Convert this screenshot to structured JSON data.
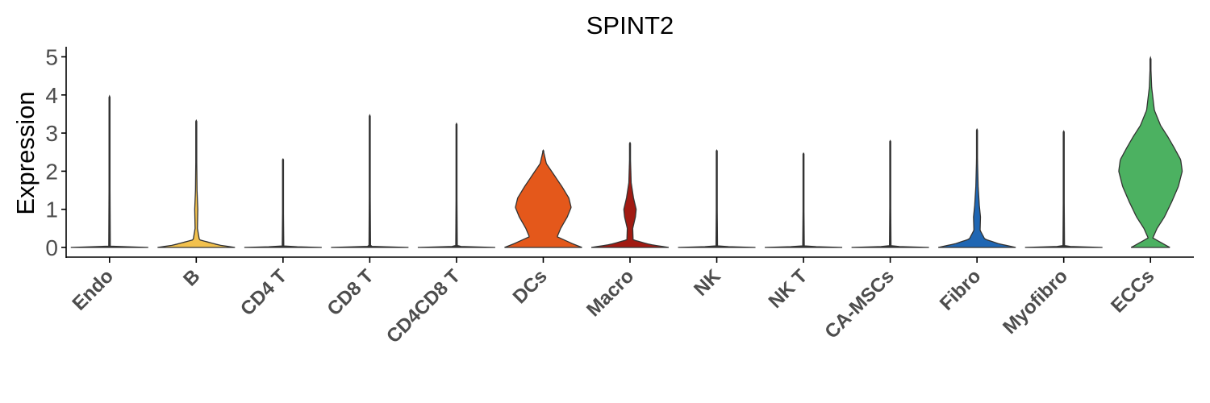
{
  "chart_data": {
    "type": "violin",
    "title": "SPINT2",
    "ylabel": "Expression",
    "xlabel": "",
    "ylim": [
      0,
      5
    ],
    "yticks": [
      "0",
      "1",
      "2",
      "3",
      "4",
      "5"
    ],
    "grid": false,
    "legend": "none",
    "categories": [
      "Endo",
      "B",
      "CD4 T",
      "CD8 T",
      "CD4CD8 T",
      "DCs",
      "Macro",
      "NK",
      "NK T",
      "CA-MSCs",
      "Fibro",
      "Myofibro",
      "ECCs"
    ],
    "colors": [
      "#333333",
      "#f2c14e",
      "#333333",
      "#333333",
      "#333333",
      "#e4581b",
      "#a11a12",
      "#333333",
      "#333333",
      "#333333",
      "#1f66b3",
      "#333333",
      "#4cb161"
    ],
    "max_values": [
      3.97,
      3.33,
      2.32,
      3.47,
      3.25,
      2.55,
      2.75,
      2.55,
      2.47,
      2.8,
      3.1,
      3.05,
      4.98
    ],
    "density_profiles": [
      [
        [
          0,
          1.0
        ],
        [
          0.03,
          0.02
        ],
        [
          3.97,
          0.0
        ]
      ],
      [
        [
          0,
          1.0
        ],
        [
          0.06,
          0.6
        ],
        [
          0.2,
          0.08
        ],
        [
          0.5,
          0.03
        ],
        [
          1.0,
          0.04
        ],
        [
          1.5,
          0.02
        ],
        [
          2.0,
          0.015
        ],
        [
          3.33,
          0.0
        ]
      ],
      [
        [
          0,
          1.0
        ],
        [
          0.03,
          0.02
        ],
        [
          2.32,
          0.0
        ]
      ],
      [
        [
          0,
          1.0
        ],
        [
          0.03,
          0.02
        ],
        [
          3.47,
          0.0
        ]
      ],
      [
        [
          0,
          1.0
        ],
        [
          0.03,
          0.02
        ],
        [
          3.25,
          0.0
        ]
      ],
      [
        [
          0,
          1.0
        ],
        [
          0.1,
          0.75
        ],
        [
          0.28,
          0.36
        ],
        [
          0.5,
          0.45
        ],
        [
          0.8,
          0.62
        ],
        [
          1.05,
          0.72
        ],
        [
          1.3,
          0.66
        ],
        [
          1.6,
          0.48
        ],
        [
          1.9,
          0.28
        ],
        [
          2.2,
          0.08
        ],
        [
          2.55,
          0.0
        ]
      ],
      [
        [
          0,
          1.0
        ],
        [
          0.08,
          0.5
        ],
        [
          0.2,
          0.08
        ],
        [
          0.5,
          0.07
        ],
        [
          0.8,
          0.14
        ],
        [
          1.0,
          0.16
        ],
        [
          1.3,
          0.09
        ],
        [
          1.7,
          0.03
        ],
        [
          2.2,
          0.015
        ],
        [
          2.75,
          0.0
        ]
      ],
      [
        [
          0,
          1.0
        ],
        [
          0.03,
          0.02
        ],
        [
          2.55,
          0.0
        ]
      ],
      [
        [
          0,
          1.0
        ],
        [
          0.03,
          0.02
        ],
        [
          2.47,
          0.0
        ]
      ],
      [
        [
          0,
          1.0
        ],
        [
          0.03,
          0.02
        ],
        [
          2.8,
          0.0
        ]
      ],
      [
        [
          0,
          1.0
        ],
        [
          0.1,
          0.55
        ],
        [
          0.22,
          0.2
        ],
        [
          0.45,
          0.08
        ],
        [
          0.8,
          0.09
        ],
        [
          1.1,
          0.06
        ],
        [
          1.6,
          0.03
        ],
        [
          2.2,
          0.015
        ],
        [
          3.1,
          0.0
        ]
      ],
      [
        [
          0,
          1.0
        ],
        [
          0.03,
          0.02
        ],
        [
          3.05,
          0.0
        ]
      ],
      [
        [
          0,
          0.5
        ],
        [
          0.1,
          0.32
        ],
        [
          0.25,
          0.06
        ],
        [
          0.5,
          0.17
        ],
        [
          0.8,
          0.36
        ],
        [
          1.2,
          0.55
        ],
        [
          1.6,
          0.72
        ],
        [
          2.0,
          0.82
        ],
        [
          2.3,
          0.78
        ],
        [
          2.6,
          0.62
        ],
        [
          2.9,
          0.45
        ],
        [
          3.2,
          0.26
        ],
        [
          3.6,
          0.1
        ],
        [
          4.2,
          0.03
        ],
        [
          4.98,
          0.0
        ]
      ]
    ]
  }
}
